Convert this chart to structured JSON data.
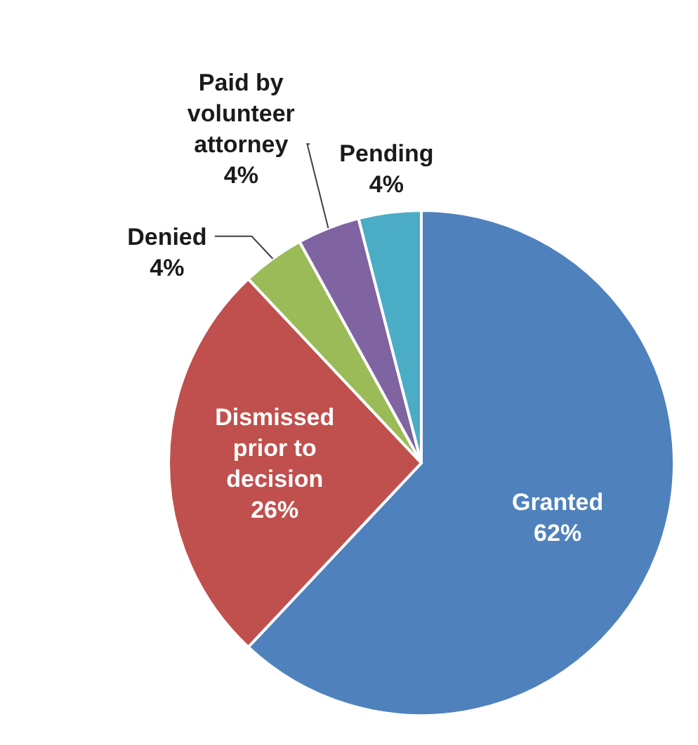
{
  "chart_data": {
    "type": "pie",
    "categories": [
      "Granted",
      "Dismissed prior to decision",
      "Denied",
      "Paid by volunteer attorney",
      "Pending"
    ],
    "values": [
      62,
      26,
      4,
      4,
      4
    ],
    "value_labels": [
      "62%",
      "26%",
      "4%",
      "4%",
      "4%"
    ],
    "colors": [
      "#4f81bd",
      "#c0504d",
      "#9bbb59",
      "#8064a2",
      "#4bacc6"
    ]
  }
}
